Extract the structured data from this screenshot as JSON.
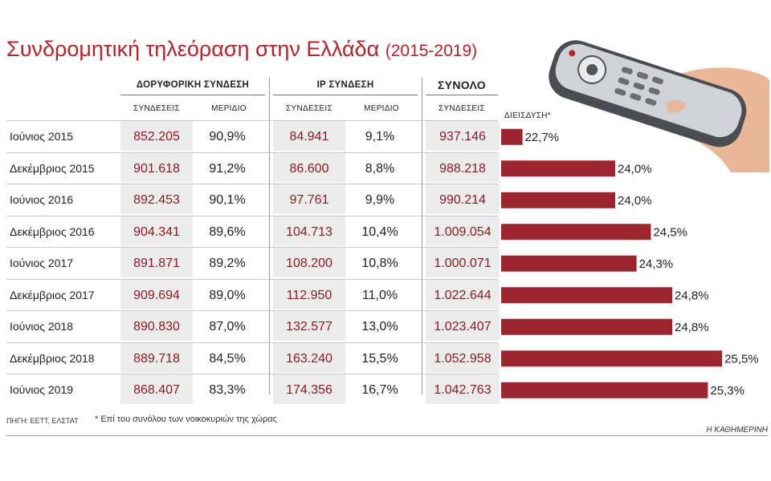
{
  "title": "Συνδρομητική τηλεόραση στην Ελλάδα",
  "subtitle": "(2015-2019)",
  "groups": {
    "satellite": "ΔΟΡΥΦΟΡΙΚΗ ΣΥΝΔΕΣΗ",
    "ip": "IP ΣΥΝΔΕΣΗ",
    "total": "ΣΥΝΟΛΟ"
  },
  "columns": {
    "sat_conn": "ΣΥΝΔΕΣΕΙΣ",
    "sat_share": "ΜΕΡΙΔΙΟ",
    "ip_conn": "ΣΥΝΔΕΣΕΙΣ",
    "ip_share": "ΜΕΡΙΔΙΟ",
    "total_conn": "ΣΥΝΔΕΣΕΙΣ",
    "penetration": "ΔΙΕΙΣΔΥΣΗ*"
  },
  "rows": [
    {
      "period": "Ιούνιος 2015",
      "sat_conn": "852.205",
      "sat_share": "90,9%",
      "ip_conn": "84.941",
      "ip_share": "9,1%",
      "total": "937.146",
      "penetration": "22,7%"
    },
    {
      "period": "Δεκέμβριος 2015",
      "sat_conn": "901.618",
      "sat_share": "91,2%",
      "ip_conn": "86.600",
      "ip_share": "8,8%",
      "total": "988.218",
      "penetration": "24,0%"
    },
    {
      "period": "Ιούνιος 2016",
      "sat_conn": "892.453",
      "sat_share": "90,1%",
      "ip_conn": "97.761",
      "ip_share": "9,9%",
      "total": "990.214",
      "penetration": "24,0%"
    },
    {
      "period": "Δεκέμβριος 2016",
      "sat_conn": "904.341",
      "sat_share": "89,6%",
      "ip_conn": "104.713",
      "ip_share": "10,4%",
      "total": "1.009.054",
      "penetration": "24,5%"
    },
    {
      "period": "Ιούνιος 2017",
      "sat_conn": "891.871",
      "sat_share": "89,2%",
      "ip_conn": "108.200",
      "ip_share": "10,8%",
      "total": "1.000.071",
      "penetration": "24,3%"
    },
    {
      "period": "Δεκέμβριος 2017",
      "sat_conn": "909.694",
      "sat_share": "89,0%",
      "ip_conn": "112.950",
      "ip_share": "11,0%",
      "total": "1.022.644",
      "penetration": "24,8%"
    },
    {
      "period": "Ιούνιος 2018",
      "sat_conn": "890.830",
      "sat_share": "87,0%",
      "ip_conn": "132.577",
      "ip_share": "13,0%",
      "total": "1.023.407",
      "penetration": "24,8%"
    },
    {
      "period": "Δεκέμβριος 2018",
      "sat_conn": "889.718",
      "sat_share": "84,5%",
      "ip_conn": "163.240",
      "ip_share": "15,5%",
      "total": "1.052.958",
      "penetration": "25,5%"
    },
    {
      "period": "Ιούνιος 2019",
      "sat_conn": "868.407",
      "sat_share": "83,3%",
      "ip_conn": "174.356",
      "ip_share": "16,7%",
      "total": "1.042.763",
      "penetration": "25,3%"
    }
  ],
  "footer": {
    "source": "ΠΗΓΗ: ΕΕΤΤ, ΕΛΣΤΑΤ",
    "note": "* Επί του συνόλου των νοικοκυριών της χώρας",
    "brand": "Η ΚΑΘΗΜΕΡΙΝΗ"
  },
  "colors": {
    "accent": "#b3262e",
    "bar": "#9b2630",
    "cell_bg": "#ececec"
  },
  "chart_data": {
    "type": "bar",
    "orientation": "horizontal",
    "categories": [
      "Ιούνιος 2015",
      "Δεκέμβριος 2015",
      "Ιούνιος 2016",
      "Δεκέμβριος 2016",
      "Ιούνιος 2017",
      "Δεκέμβριος 2017",
      "Ιούνιος 2018",
      "Δεκέμβριος 2018",
      "Ιούνιος 2019"
    ],
    "series": [
      {
        "name": "ΔΙΕΙΣΔΥΣΗ*",
        "values": [
          22.7,
          24.0,
          24.0,
          24.5,
          24.3,
          24.8,
          24.8,
          25.5,
          25.3
        ],
        "labels": [
          "22,7%",
          "24,0%",
          "24,0%",
          "24,5%",
          "24,3%",
          "24,8%",
          "24,8%",
          "25,5%",
          "25,3%"
        ]
      }
    ],
    "xlim": [
      22.4,
      25.6
    ],
    "grid": false,
    "legend": "none"
  }
}
